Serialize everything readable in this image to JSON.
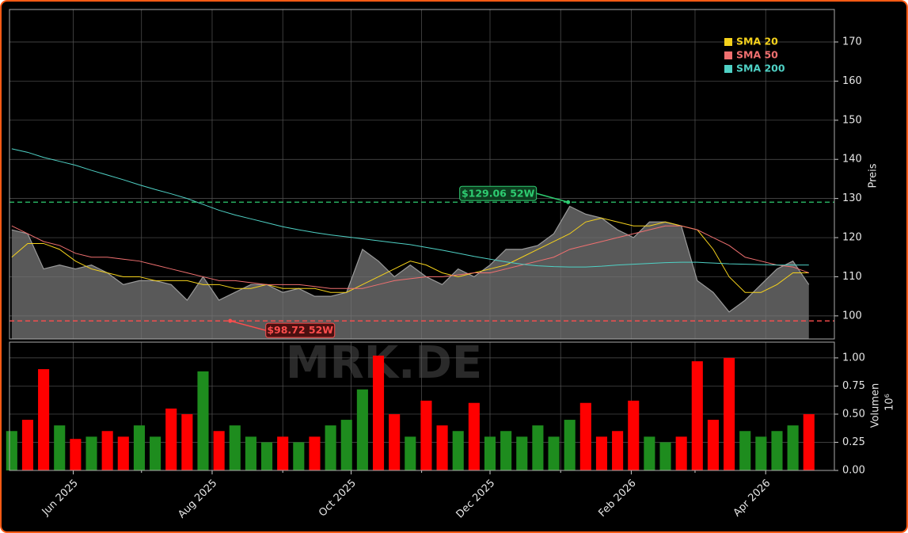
{
  "chart_data": [
    {
      "type": "area",
      "watermark": "MRK.DE",
      "ylabel": "Preis",
      "color": "#9a9a9a",
      "values": [
        122,
        121,
        112,
        113,
        112,
        113,
        111,
        108,
        109,
        109,
        108,
        104,
        110,
        104,
        106,
        108,
        108,
        106,
        107,
        105,
        105,
        106,
        117,
        114,
        110,
        113,
        110,
        108,
        112,
        110,
        113,
        117,
        117,
        118,
        121,
        128,
        126,
        125,
        122,
        120,
        124,
        124,
        123,
        109,
        106,
        101,
        104,
        108,
        112,
        114,
        108
      ],
      "series": [
        {
          "name": "SMA 20",
          "color": "#f5d21c",
          "values": [
            115,
            118.5,
            118.5,
            117,
            114,
            112,
            111,
            110,
            110,
            109,
            109,
            109,
            108,
            108,
            107,
            107,
            108,
            107,
            107,
            107,
            106,
            106,
            108,
            110,
            112,
            114,
            113,
            111,
            110,
            111,
            112,
            113,
            115,
            117,
            119,
            121,
            124,
            125,
            124,
            123,
            123,
            124,
            123,
            122,
            117,
            110,
            106,
            106,
            108,
            111,
            111
          ]
        },
        {
          "name": "SMA 50",
          "color": "#f07070",
          "values": [
            123,
            121,
            119,
            118,
            116,
            115,
            115,
            114.5,
            114,
            113,
            112,
            111,
            110,
            109,
            109,
            108.5,
            108,
            108,
            108,
            107.5,
            107,
            107,
            107,
            108,
            109,
            109.5,
            110,
            110,
            110.5,
            111,
            111,
            112,
            113,
            114,
            115,
            117,
            118,
            119,
            120,
            121,
            122,
            123,
            123,
            122,
            120,
            118,
            115,
            114,
            113,
            112.5,
            111
          ]
        },
        {
          "name": "SMA 200",
          "color": "#4fd1c5",
          "values": [
            142.7,
            141.8,
            140.5,
            139.5,
            138.5,
            137.2,
            136,
            134.8,
            133.5,
            132.3,
            131.2,
            130,
            128.5,
            127,
            125.8,
            124.8,
            123.8,
            122.8,
            122,
            121.3,
            120.7,
            120.2,
            119.7,
            119.2,
            118.7,
            118.2,
            117.5,
            116.8,
            116,
            115.2,
            114.5,
            113.8,
            113.2,
            112.8,
            112.6,
            112.5,
            112.5,
            112.7,
            113,
            113.2,
            113.4,
            113.6,
            113.7,
            113.7,
            113.5,
            113.3,
            113.2,
            113.1,
            113,
            113,
            113
          ]
        }
      ],
      "hlines": [
        {
          "value": 129.06,
          "label": "$129.06 52W",
          "color": "#2ecc71",
          "x": 34.9
        },
        {
          "value": 98.72,
          "label": "$98.72 52W",
          "color": "#ff4d4d",
          "x": 13.7
        }
      ],
      "xlim": [
        -0.14,
        51.6
      ],
      "ylim": [
        94.1,
        178.3
      ],
      "yticks": [
        100,
        110,
        120,
        130,
        140,
        150,
        160,
        170
      ],
      "grid": true,
      "legend": "upper right"
    },
    {
      "type": "bar",
      "ylabel": "Volumen",
      "offset_label": "10⁶",
      "up_color": "#1e8c1e",
      "down_color": "#ff0000",
      "values": [
        0.35,
        0.45,
        0.9,
        0.4,
        0.28,
        0.3,
        0.35,
        0.3,
        0.4,
        0.3,
        0.55,
        0.5,
        0.88,
        0.35,
        0.4,
        0.3,
        0.25,
        0.3,
        0.25,
        0.3,
        0.4,
        0.45,
        0.72,
        1.02,
        0.5,
        0.3,
        0.62,
        0.4,
        0.35,
        0.6,
        0.3,
        0.35,
        0.3,
        0.4,
        0.3,
        0.45,
        0.6,
        0.3,
        0.35,
        0.62,
        0.3,
        0.25,
        0.3,
        0.97,
        0.45,
        1.0,
        0.35,
        0.3,
        0.35,
        0.4,
        0.5
      ],
      "xlim": [
        -0.14,
        51.6
      ],
      "ylim": [
        0,
        1.14
      ],
      "yticks": [
        {
          "value": 0,
          "label": "0.00"
        },
        0.25,
        {
          "value": 0.5,
          "label": "0.50"
        },
        0.75,
        {
          "value": 1,
          "label": "1.00"
        }
      ],
      "xticks": [
        {
          "value": 3.86,
          "label": "Jun 2025"
        },
        {
          "value": 12.57,
          "label": "Aug 2025"
        },
        {
          "value": 21.29,
          "label": "Oct 2025"
        },
        {
          "value": 30,
          "label": "Dec 2025"
        },
        {
          "value": 38.86,
          "label": "Feb 2026"
        },
        {
          "value": 47.29,
          "label": "Apr 2026"
        }
      ],
      "xminorticks": [
        8.14,
        17,
        25.71,
        34.43,
        42.86
      ],
      "grid": true
    }
  ]
}
